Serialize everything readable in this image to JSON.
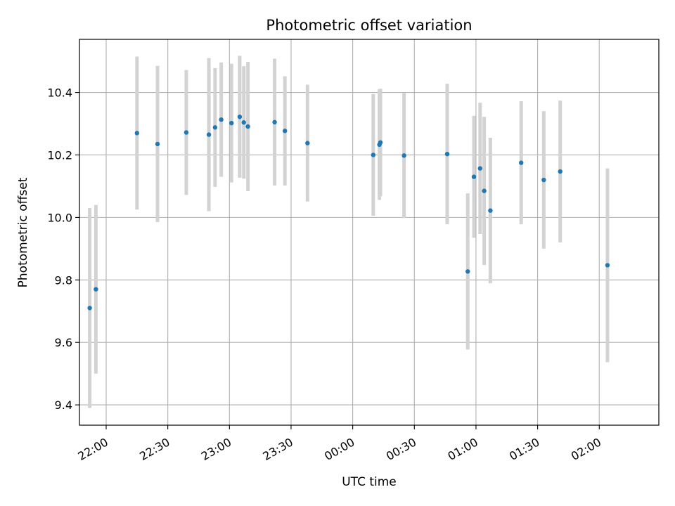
{
  "chart_data": {
    "type": "scatter",
    "title": "Photometric offset variation",
    "xlabel": "UTC time",
    "ylabel": "Photometric offset",
    "grid": true,
    "x_axis_kind": "time",
    "xlim": [
      "21:47",
      "02:29"
    ],
    "ylim": [
      9.335,
      10.57
    ],
    "x_ticks": [
      "22:00",
      "22:30",
      "23:00",
      "23:30",
      "00:00",
      "00:30",
      "01:00",
      "01:30",
      "02:00"
    ],
    "y_ticks": [
      9.4,
      9.6,
      9.8,
      10.0,
      10.2,
      10.4
    ],
    "y_tick_labels": [
      "9.4",
      "9.6",
      "9.8",
      "10.0",
      "10.2",
      "10.4"
    ],
    "colors": {
      "point": "#1f77b4",
      "errorbar": "#d3d3d3",
      "grid": "#b0b0b0"
    },
    "points": [
      {
        "x": "21:52",
        "y": 9.71,
        "yerr": 0.32
      },
      {
        "x": "21:55",
        "y": 9.77,
        "yerr": 0.27
      },
      {
        "x": "22:15",
        "y": 10.27,
        "yerr": 0.245
      },
      {
        "x": "22:25",
        "y": 10.235,
        "yerr": 0.25
      },
      {
        "x": "22:39",
        "y": 10.272,
        "yerr": 0.2
      },
      {
        "x": "22:50",
        "y": 10.265,
        "yerr": 0.245
      },
      {
        "x": "22:53",
        "y": 10.288,
        "yerr": 0.19
      },
      {
        "x": "22:56",
        "y": 10.313,
        "yerr": 0.183
      },
      {
        "x": "23:01",
        "y": 10.302,
        "yerr": 0.19
      },
      {
        "x": "23:05",
        "y": 10.322,
        "yerr": 0.195
      },
      {
        "x": "23:07",
        "y": 10.304,
        "yerr": 0.18
      },
      {
        "x": "23:09",
        "y": 10.291,
        "yerr": 0.207
      },
      {
        "x": "23:22",
        "y": 10.305,
        "yerr": 0.203
      },
      {
        "x": "23:27",
        "y": 10.277,
        "yerr": 0.175
      },
      {
        "x": "23:38",
        "y": 10.238,
        "yerr": 0.187
      },
      {
        "x": "00:10",
        "y": 10.2,
        "yerr": 0.195
      },
      {
        "x": "00:13",
        "y": 10.233,
        "yerr": 0.177
      },
      {
        "x": "00:13.5",
        "y": 10.24,
        "yerr": 0.172
      },
      {
        "x": "00:25",
        "y": 10.198,
        "yerr": 0.2
      },
      {
        "x": "00:46",
        "y": 10.203,
        "yerr": 0.225
      },
      {
        "x": "00:56",
        "y": 9.827,
        "yerr": 0.25
      },
      {
        "x": "00:59",
        "y": 10.13,
        "yerr": 0.195
      },
      {
        "x": "01:02",
        "y": 10.157,
        "yerr": 0.21
      },
      {
        "x": "01:04",
        "y": 10.085,
        "yerr": 0.237
      },
      {
        "x": "01:07",
        "y": 10.022,
        "yerr": 0.233
      },
      {
        "x": "01:22",
        "y": 10.175,
        "yerr": 0.197
      },
      {
        "x": "01:33",
        "y": 10.12,
        "yerr": 0.22
      },
      {
        "x": "01:41",
        "y": 10.147,
        "yerr": 0.227
      },
      {
        "x": "02:04",
        "y": 9.847,
        "yerr": 0.31
      }
    ]
  }
}
